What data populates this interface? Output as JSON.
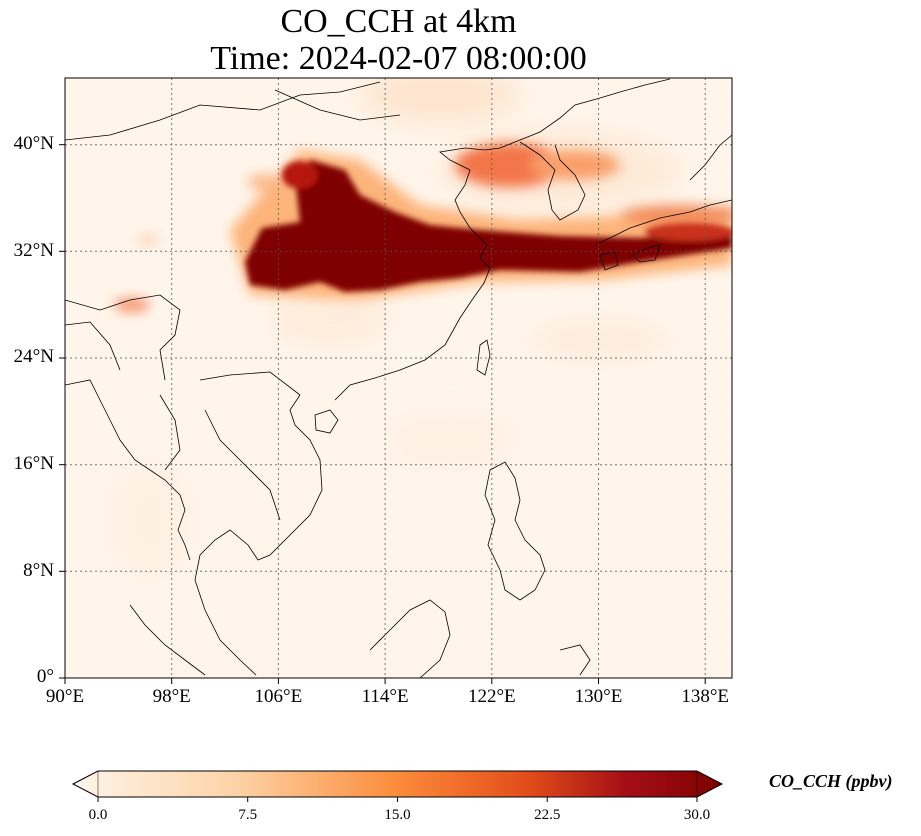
{
  "title": {
    "line1": "CO_CCH at 4km",
    "line2": "Time: 2024-02-07 08:00:00"
  },
  "map": {
    "lon_ticks": [
      "90°E",
      "98°E",
      "106°E",
      "114°E",
      "122°E",
      "130°E",
      "138°E"
    ],
    "lat_ticks": [
      "0°",
      "8°N",
      "16°N",
      "24°N",
      "32°N",
      "40°N"
    ],
    "extent": {
      "lon": [
        90,
        140
      ],
      "lat": [
        0,
        45
      ]
    },
    "gridlines": true,
    "plume_color_max": "#7f0000",
    "background_color": "#fff5eb"
  },
  "colorbar": {
    "label": "CO_CCH (ppbv)",
    "ticks": [
      "0.0",
      "7.5",
      "15.0",
      "22.5",
      "30.0"
    ],
    "min": 0,
    "max": 30,
    "extend": "both",
    "colormap": [
      "#fff5eb",
      "#fdd3a7",
      "#fc8c3b",
      "#e24d1a",
      "#a50f15",
      "#7f0000"
    ]
  }
}
